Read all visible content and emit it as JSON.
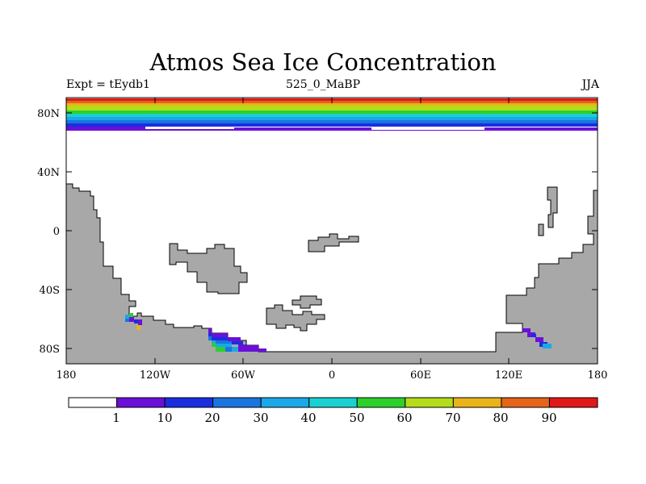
{
  "title": "Atmos Sea Ice Concentration",
  "subtitle_left": "Expt = tEydb1",
  "subtitle_center": "525_0_MaBP",
  "subtitle_right": "JJA",
  "map": {
    "projection": "cylindrical-equidistant",
    "lon_range": [
      -180,
      180
    ],
    "lat_range": [
      -90,
      90
    ],
    "x_ticks": [
      "180",
      "120W",
      "60W",
      "0",
      "60E",
      "120E",
      "180"
    ],
    "y_ticks": [
      "80N",
      "40N",
      "0",
      "40S",
      "80S"
    ],
    "land_color": "#a8a8a8",
    "ocean_color": "#ffffff"
  },
  "colorbar": {
    "labels": [
      "1",
      "10",
      "20",
      "30",
      "40",
      "50",
      "60",
      "70",
      "80",
      "90"
    ],
    "colors": [
      "#ffffff",
      "#6a10d8",
      "#1a2ee0",
      "#1a74e0",
      "#1aa8e8",
      "#1ad0d0",
      "#2cd02c",
      "#b4dc1a",
      "#e8b41a",
      "#e4641a",
      "#e01818"
    ]
  }
}
